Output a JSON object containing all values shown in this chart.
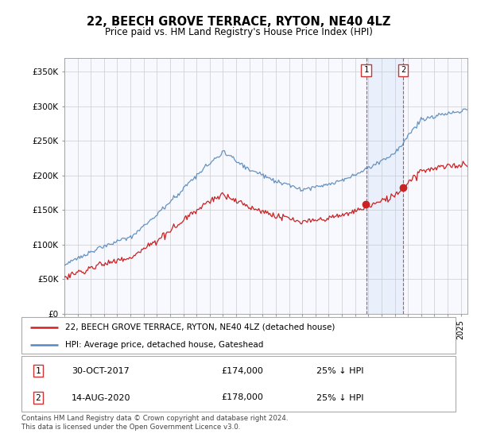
{
  "title": "22, BEECH GROVE TERRACE, RYTON, NE40 4LZ",
  "subtitle": "Price paid vs. HM Land Registry's House Price Index (HPI)",
  "ylabel_ticks": [
    "£0",
    "£50K",
    "£100K",
    "£150K",
    "£200K",
    "£250K",
    "£300K",
    "£350K"
  ],
  "ytick_values": [
    0,
    50000,
    100000,
    150000,
    200000,
    250000,
    300000,
    350000
  ],
  "ylim": [
    0,
    370000
  ],
  "xlim_start": 1995.0,
  "xlim_end": 2025.5,
  "legend_line1": "22, BEECH GROVE TERRACE, RYTON, NE40 4LZ (detached house)",
  "legend_line2": "HPI: Average price, detached house, Gateshead",
  "marker1_date": 2017.83,
  "marker2_date": 2020.62,
  "footer_line1": "Contains HM Land Registry data © Crown copyright and database right 2024.",
  "footer_line2": "This data is licensed under the Open Government Licence v3.0.",
  "table_row1": [
    "1",
    "30-OCT-2017",
    "£174,000",
    "25% ↓ HPI"
  ],
  "table_row2": [
    "2",
    "14-AUG-2020",
    "£178,000",
    "25% ↓ HPI"
  ],
  "hpi_color": "#5588bb",
  "price_color": "#cc2222",
  "background_plot": "#f8f8ff",
  "grid_color": "#cccccc",
  "fig_width": 6.0,
  "fig_height": 5.6
}
